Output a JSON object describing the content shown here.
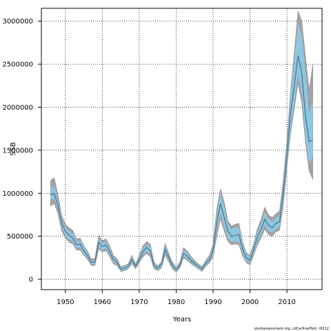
{
  "chart_data": {
    "type": "line",
    "title": "",
    "xlabel": "Years",
    "ylabel": "SSB",
    "xlim": [
      1943.5,
      2019.5
    ],
    "ylim": [
      -120000,
      3150000
    ],
    "x_ticks": [
      1950,
      1960,
      1970,
      1980,
      1990,
      2000,
      2010
    ],
    "y_ticks": [
      0,
      500000,
      1000000,
      1500000,
      2000000,
      2500000,
      3000000
    ],
    "grid": true,
    "grid_style": "dotted",
    "legend": "none",
    "credit": "stockassessment.org, cdCarfinalTest, r9212",
    "colors": {
      "band_outer": "#a3a3a3",
      "band_inner": "#8ec6e1",
      "estimate_line": "#4a6f86",
      "grid": "#000000"
    },
    "series": [
      {
        "x": [
          1946,
          1947,
          1948,
          1949,
          1950,
          1951,
          1952,
          1953,
          1954,
          1955,
          1956,
          1957,
          1958,
          1959,
          1960,
          1961,
          1962,
          1963,
          1964,
          1965,
          1966,
          1967,
          1968,
          1969,
          1970,
          1971,
          1972,
          1973,
          1974,
          1975,
          1976,
          1977,
          1978,
          1979,
          1980,
          1981,
          1982,
          1983,
          1984,
          1985,
          1986,
          1987,
          1988,
          1989,
          1990,
          1991,
          1992,
          1993,
          1994,
          1995,
          1996,
          1997,
          1998,
          1999,
          2000,
          2001,
          2002,
          2003,
          2004,
          2005,
          2006,
          2007,
          2008,
          2009,
          2010,
          2011,
          2012,
          2013,
          2014,
          2015,
          2016,
          2017
        ],
        "y": [
          980000,
          1000000,
          860000,
          650000,
          560000,
          510000,
          480000,
          400000,
          410000,
          330000,
          280000,
          200000,
          200000,
          430000,
          380000,
          400000,
          320000,
          230000,
          200000,
          120000,
          130000,
          150000,
          230000,
          150000,
          230000,
          320000,
          370000,
          330000,
          160000,
          130000,
          170000,
          350000,
          250000,
          160000,
          110000,
          160000,
          300000,
          270000,
          220000,
          180000,
          150000,
          120000,
          180000,
          230000,
          330000,
          660000,
          880000,
          720000,
          560000,
          500000,
          510000,
          520000,
          350000,
          250000,
          220000,
          350000,
          490000,
          580000,
          700000,
          630000,
          600000,
          650000,
          670000,
          1000000,
          1450000,
          1950000,
          2250000,
          2600000,
          2400000,
          1900000,
          1600000,
          1620000
        ]
      }
    ],
    "band_inner": {
      "lower": [
        920000,
        940000,
        800000,
        600000,
        510000,
        460000,
        440000,
        360000,
        370000,
        300000,
        250000,
        180000,
        180000,
        380000,
        340000,
        360000,
        280000,
        200000,
        180000,
        100000,
        110000,
        130000,
        200000,
        130000,
        210000,
        290000,
        330000,
        290000,
        140000,
        110000,
        150000,
        310000,
        220000,
        140000,
        90000,
        140000,
        270000,
        240000,
        200000,
        160000,
        130000,
        100000,
        160000,
        210000,
        290000,
        560000,
        760000,
        610000,
        480000,
        430000,
        440000,
        440000,
        300000,
        210000,
        190000,
        310000,
        440000,
        520000,
        630000,
        560000,
        540000,
        590000,
        610000,
        900000,
        1350000,
        1750000,
        2050000,
        2380000,
        2150000,
        1650000,
        1350000,
        1420000
      ],
      "upper": [
        1060000,
        1080000,
        920000,
        700000,
        600000,
        560000,
        530000,
        440000,
        450000,
        370000,
        310000,
        220000,
        220000,
        480000,
        420000,
        440000,
        360000,
        260000,
        220000,
        140000,
        150000,
        170000,
        260000,
        170000,
        260000,
        360000,
        410000,
        380000,
        190000,
        150000,
        190000,
        390000,
        280000,
        180000,
        130000,
        180000,
        340000,
        310000,
        250000,
        200000,
        170000,
        140000,
        200000,
        260000,
        380000,
        760000,
        1000000,
        840000,
        640000,
        580000,
        600000,
        610000,
        400000,
        290000,
        260000,
        390000,
        550000,
        650000,
        780000,
        700000,
        670000,
        710000,
        740000,
        1100000,
        1570000,
        2150000,
        2550000,
        2980000,
        2820000,
        2420000,
        1920000,
        2080000
      ]
    },
    "band_outer": {
      "lower": [
        850000,
        880000,
        760000,
        560000,
        480000,
        430000,
        410000,
        340000,
        340000,
        280000,
        230000,
        160000,
        160000,
        350000,
        320000,
        330000,
        260000,
        180000,
        160000,
        90000,
        100000,
        120000,
        180000,
        120000,
        190000,
        260000,
        300000,
        260000,
        120000,
        100000,
        130000,
        280000,
        200000,
        120000,
        80000,
        130000,
        250000,
        220000,
        180000,
        150000,
        120000,
        90000,
        150000,
        190000,
        260000,
        500000,
        700000,
        560000,
        440000,
        400000,
        410000,
        400000,
        270000,
        190000,
        170000,
        280000,
        400000,
        480000,
        580000,
        520000,
        500000,
        550000,
        570000,
        850000,
        1300000,
        1700000,
        1980000,
        2280000,
        2050000,
        1600000,
        1260000,
        1160000
      ],
      "upper": [
        1150000,
        1180000,
        980000,
        740000,
        640000,
        600000,
        570000,
        470000,
        480000,
        390000,
        330000,
        240000,
        240000,
        510000,
        450000,
        470000,
        390000,
        280000,
        240000,
        150000,
        160000,
        180000,
        280000,
        180000,
        280000,
        390000,
        440000,
        410000,
        200000,
        160000,
        200000,
        420000,
        300000,
        200000,
        140000,
        200000,
        370000,
        330000,
        270000,
        220000,
        180000,
        150000,
        220000,
        280000,
        410000,
        820000,
        1050000,
        900000,
        680000,
        620000,
        640000,
        650000,
        430000,
        310000,
        280000,
        420000,
        590000,
        700000,
        840000,
        750000,
        720000,
        760000,
        800000,
        1150000,
        1620000,
        2200000,
        2650000,
        3120000,
        3000000,
        2600000,
        2200000,
        2500000
      ]
    }
  }
}
